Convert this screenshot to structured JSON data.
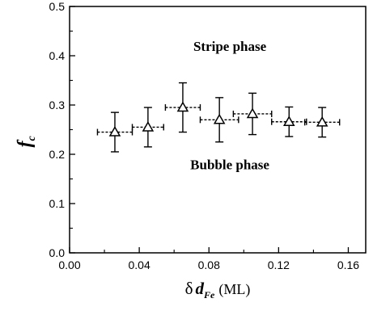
{
  "chart_data": {
    "type": "scatter",
    "title": "",
    "xlabel": {
      "main": "δ",
      "var": "d",
      "sub": "Fe",
      "unit": "(ML)"
    },
    "ylabel": {
      "var": "f",
      "sub": "c"
    },
    "xlim": [
      0.0,
      0.17
    ],
    "ylim": [
      0.0,
      0.5
    ],
    "xticks": [
      0.0,
      0.04,
      0.08,
      0.12,
      0.16
    ],
    "xtick_labels": [
      "0.00",
      "0.04",
      "0.08",
      "0.12",
      "0.16"
    ],
    "yticks": [
      0.0,
      0.1,
      0.2,
      0.3,
      0.4,
      0.5
    ],
    "ytick_labels": [
      "0.0",
      "0.1",
      "0.2",
      "0.3",
      "0.4",
      "0.5"
    ],
    "grid": false,
    "marker": "triangle-open",
    "series": [
      {
        "x": [
          0.026,
          0.045,
          0.065,
          0.086,
          0.105,
          0.126,
          0.145
        ],
        "y": [
          0.245,
          0.255,
          0.295,
          0.27,
          0.282,
          0.266,
          0.265
        ],
        "x_err": [
          0.01,
          0.009,
          0.01,
          0.011,
          0.011,
          0.01,
          0.01
        ],
        "y_err_low": [
          0.04,
          0.04,
          0.05,
          0.045,
          0.042,
          0.03,
          0.03
        ],
        "y_err_high": [
          0.04,
          0.04,
          0.05,
          0.045,
          0.042,
          0.03,
          0.03
        ]
      }
    ],
    "annotations": [
      {
        "text": "Stripe phase",
        "x": 0.092,
        "y": 0.41
      },
      {
        "text": "Bubble phase",
        "x": 0.092,
        "y": 0.17
      }
    ]
  }
}
